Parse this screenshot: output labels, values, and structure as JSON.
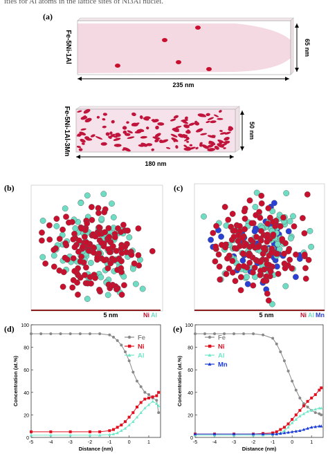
{
  "caption": "ities for Al atoms in the lattice sites of Ni3Al nuclei.",
  "panels": {
    "a": {
      "label": "(a)",
      "top": {
        "alloy": "Fe-5Ni-1Al",
        "width_label": "235 nm",
        "height_label": "65 nm"
      },
      "bottom": {
        "alloy": "Fe-5Ni-1Al-3Mn",
        "width_label": "180 nm",
        "height_label": "50 nm"
      }
    },
    "b": {
      "label": "(b)",
      "scale_label": "5 nm",
      "legend": [
        {
          "name": "Ni",
          "color": "#c8102e"
        },
        {
          "name": "Al",
          "color": "#6fdcc4"
        }
      ]
    },
    "c": {
      "label": "(c)",
      "scale_label": "5 nm",
      "legend": [
        {
          "name": "Ni",
          "color": "#c8102e"
        },
        {
          "name": "Al",
          "color": "#6fdcc4"
        },
        {
          "name": "Mn",
          "color": "#2a3fd6"
        }
      ]
    },
    "d": {
      "label": "(d)"
    },
    "e": {
      "label": "(e)"
    }
  },
  "colors": {
    "Fe": "#888888",
    "Ni": "#e0101e",
    "Al": "#6fe8c8",
    "Mn": "#1a3ad6"
  },
  "chart_data": [
    {
      "type": "line",
      "panel": "d",
      "xlabel": "Distance (nm)",
      "ylabel": "Concentration (at.%)",
      "xlim": [
        -5,
        1.6
      ],
      "ylim": [
        0,
        100
      ],
      "xticks": [
        -5,
        -4,
        -3,
        -2,
        -1,
        0,
        1
      ],
      "yticks": [
        0,
        20,
        40,
        60,
        80,
        100
      ],
      "legend": "top-right",
      "series": [
        {
          "name": "Fe",
          "marker": "circle",
          "x": [
            -5,
            -4.5,
            -4,
            -3.5,
            -3,
            -2.5,
            -2,
            -1.5,
            -1,
            -0.8,
            -0.6,
            -0.4,
            -0.2,
            0,
            0.2,
            0.4,
            0.6,
            0.8,
            1,
            1.2,
            1.4,
            1.5
          ],
          "y": [
            92,
            92,
            92,
            92,
            92,
            92,
            92,
            92,
            91,
            89,
            86,
            82,
            76,
            68,
            58,
            50,
            45,
            40,
            38,
            35,
            33,
            22
          ]
        },
        {
          "name": "Ni",
          "marker": "square",
          "x": [
            -5,
            -4,
            -3,
            -2,
            -1.5,
            -1,
            -0.8,
            -0.6,
            -0.4,
            -0.2,
            0,
            0.2,
            0.4,
            0.6,
            0.8,
            1,
            1.2,
            1.4,
            1.5
          ],
          "y": [
            5,
            5,
            5,
            5,
            5,
            6,
            7,
            9,
            11,
            14,
            18,
            22,
            27,
            31,
            34,
            35,
            36,
            37,
            40
          ]
        },
        {
          "name": "Al",
          "marker": "triangle",
          "x": [
            -5,
            -4,
            -3,
            -2,
            -1.5,
            -1,
            -0.8,
            -0.6,
            -0.4,
            -0.2,
            0,
            0.2,
            0.4,
            0.6,
            0.8,
            1,
            1.2,
            1.4,
            1.5
          ],
          "y": [
            2,
            2,
            2,
            2,
            2,
            2.5,
            3,
            4,
            6,
            8,
            11,
            14,
            18,
            22,
            26,
            29,
            32,
            30,
            28
          ]
        }
      ]
    },
    {
      "type": "line",
      "panel": "e",
      "xlabel": "Distance (nm)",
      "ylabel": "Concentration (at.%)",
      "xlim": [
        -5,
        1.6
      ],
      "ylim": [
        0,
        100
      ],
      "xticks": [
        -5,
        -4,
        -3,
        -2,
        -1,
        0,
        1
      ],
      "yticks": [
        0,
        20,
        40,
        60,
        80,
        100
      ],
      "legend": "left",
      "series": [
        {
          "name": "Fe",
          "marker": "circle",
          "x": [
            -5,
            -4.5,
            -4,
            -3.5,
            -3,
            -2.5,
            -2,
            -1.5,
            -1,
            -0.8,
            -0.6,
            -0.4,
            -0.2,
            0,
            0.2,
            0.4,
            0.6,
            0.8,
            1,
            1.2,
            1.4,
            1.5
          ],
          "y": [
            92,
            92,
            92,
            92,
            92,
            92,
            92,
            91,
            88,
            83,
            76,
            68,
            59,
            50,
            42,
            35,
            30,
            27,
            24,
            22,
            21,
            20
          ]
        },
        {
          "name": "Ni",
          "marker": "square",
          "x": [
            -5,
            -4,
            -3,
            -2,
            -1.5,
            -1,
            -0.8,
            -0.6,
            -0.4,
            -0.2,
            0,
            0.2,
            0.4,
            0.6,
            0.8,
            1,
            1.2,
            1.4,
            1.5
          ],
          "y": [
            3,
            3,
            3,
            3,
            3.5,
            4,
            5,
            7,
            9,
            12,
            16,
            20,
            24,
            28,
            32,
            35,
            38,
            42,
            44
          ]
        },
        {
          "name": "Al",
          "marker": "triangle",
          "x": [
            -5,
            -4,
            -3,
            -2,
            -1.5,
            -1,
            -0.8,
            -0.6,
            -0.4,
            -0.2,
            0,
            0.2,
            0.4,
            0.6,
            0.8,
            1,
            1.2,
            1.4,
            1.5
          ],
          "y": [
            2,
            2,
            2,
            2,
            2,
            2.5,
            3,
            4,
            6,
            9,
            13,
            16,
            19,
            21,
            23,
            24,
            25,
            26,
            26
          ]
        },
        {
          "name": "Mn",
          "marker": "triangle",
          "x": [
            -5,
            -4,
            -3,
            -2,
            -1.5,
            -1,
            -0.8,
            -0.6,
            -0.4,
            -0.2,
            0,
            0.2,
            0.4,
            0.6,
            0.8,
            1,
            1.2,
            1.4,
            1.5
          ],
          "y": [
            3,
            3,
            3,
            3,
            3,
            3,
            3,
            3.5,
            4,
            4.5,
            5,
            5.5,
            6,
            7,
            8,
            9,
            9.5,
            10,
            10
          ]
        }
      ]
    }
  ]
}
